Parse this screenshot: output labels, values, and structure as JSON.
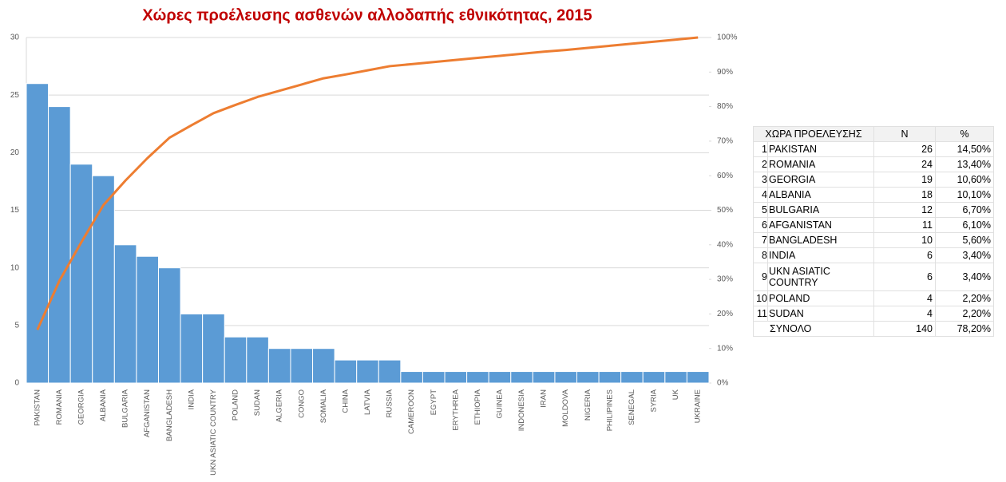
{
  "chart_data": {
    "type": "bar",
    "title": "Χώρες προέλευσης ασθενών αλλοδαπής εθνικότητας, 2015",
    "categories": [
      "PAKISTAN",
      "ROMANIA",
      "GEORGIA",
      "ALBANIA",
      "BULGARIA",
      "AFGANISTAN",
      "BANGLADESH",
      "INDIA",
      "UKN ASIATIC COUNTRY",
      "POLAND",
      "SUDAN",
      "ALGERIA",
      "CONGO",
      "SOMALIA",
      "CHINA",
      "LATVIA",
      "RUSSIA",
      "CAMEROON",
      "EGYPT",
      "ERYTHREA",
      "ETHIOPIA",
      "GUINEA",
      "INDONESIA",
      "IRAN",
      "MOLDOVA",
      "NIGERIA",
      "PHILIPINES",
      "SENEGAL",
      "SYRIA",
      "UK",
      "UKRAINE"
    ],
    "series": [
      {
        "color": "#5b9bd5",
        "values": [
          26,
          24,
          19,
          18,
          12,
          11,
          10,
          6,
          6,
          4,
          4,
          3,
          3,
          3,
          2,
          2,
          2,
          1,
          1,
          1,
          1,
          1,
          1,
          1,
          1,
          1,
          1,
          1,
          1,
          1,
          1
        ]
      },
      {
        "color": "#ed7d31",
        "axis": "y2",
        "values": [
          15.4,
          29.6,
          40.8,
          51.5,
          58.6,
          65.1,
          71.0,
          74.6,
          78.1,
          80.5,
          82.8,
          84.6,
          86.4,
          88.2,
          89.3,
          90.5,
          91.7,
          92.3,
          92.9,
          93.5,
          94.1,
          94.7,
          95.3,
          95.9,
          96.4,
          97.0,
          97.6,
          98.2,
          98.8,
          99.4,
          100
        ]
      }
    ],
    "ylim": [
      0,
      30
    ],
    "yticks": [
      0,
      5,
      10,
      15,
      20,
      25,
      30
    ],
    "y2lim": [
      0,
      100
    ],
    "y2ticks": [
      {
        "value": 0,
        "label": "0%"
      },
      {
        "value": 10,
        "label": "10%"
      },
      {
        "value": 20,
        "label": "20%"
      },
      {
        "value": 30,
        "label": "30%"
      },
      {
        "value": 40,
        "label": "40%"
      },
      {
        "value": 50,
        "label": "50%"
      },
      {
        "value": 60,
        "label": "60%"
      },
      {
        "value": 70,
        "label": "70%"
      },
      {
        "value": 80,
        "label": "80%"
      },
      {
        "value": 90,
        "label": "90%"
      },
      {
        "value": 100,
        "label": "100%"
      }
    ],
    "grid": true
  },
  "table": {
    "header": [
      "ΧΩΡΑ ΠΡΟΕΛΕΥΣΗΣ",
      "N",
      "%"
    ],
    "rows": [
      [
        1,
        "PAKISTAN",
        26,
        "14,50%"
      ],
      [
        2,
        "ROMANIA",
        24,
        "13,40%"
      ],
      [
        3,
        "GEORGIA",
        19,
        "10,60%"
      ],
      [
        4,
        "ALBANIA",
        18,
        "10,10%"
      ],
      [
        5,
        "BULGARIA",
        12,
        "6,70%"
      ],
      [
        6,
        "AFGANISTAN",
        11,
        "6,10%"
      ],
      [
        7,
        "BANGLADESH",
        10,
        "5,60%"
      ],
      [
        8,
        "INDIA",
        6,
        "3,40%"
      ],
      [
        9,
        "UKN ASIATIC COUNTRY",
        6,
        "3,40%"
      ],
      [
        10,
        "POLAND",
        4,
        "2,20%"
      ],
      [
        11,
        "SUDAN",
        4,
        "2,20%"
      ]
    ],
    "total": [
      "ΣΥΝΟΛΟ",
      140,
      "78,20%"
    ]
  }
}
